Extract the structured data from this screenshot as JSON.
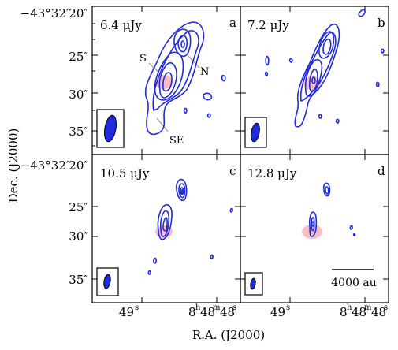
{
  "figure": {
    "ylabel": "Dec. (J2000)",
    "xlabel": "R.A. (J2000)",
    "top_dec_label": "−43°32′20″",
    "bottom_dec_label": "−43°32′20″",
    "y_ticks": [
      "25″",
      "30″",
      "35″"
    ],
    "x_tick_left": "49",
    "x_tick_left_sup": "s",
    "x_tick_right": "8",
    "x_tick_right_h": "h",
    "x_tick_right_mid": "48",
    "x_tick_right_m": "m",
    "x_tick_right_end": "48",
    "x_tick_right_s": "s",
    "x_tick_right2": "8",
    "x_tick_right2_h": "h",
    "x_tick_right2_mid": "48",
    "x_tick_right2_m": "m",
    "x_tick_right2_end": "48",
    "x_tick_right2_s": "s"
  },
  "panels": [
    {
      "id": "a",
      "rms": "6.4 μJy",
      "letter": "a",
      "labels": {
        "s": "S",
        "n": "N",
        "se": "SE"
      }
    },
    {
      "id": "b",
      "rms": "7.2 μJy",
      "letter": "b"
    },
    {
      "id": "c",
      "rms": "10.5 μJy",
      "letter": "c"
    },
    {
      "id": "d",
      "rms": "12.8 μJy",
      "letter": "d",
      "scalebar": "4000 au"
    }
  ],
  "colors": {
    "contour": "#1f2bdc",
    "marker": "#f6b8bd",
    "beam": "#1f2bdc"
  }
}
